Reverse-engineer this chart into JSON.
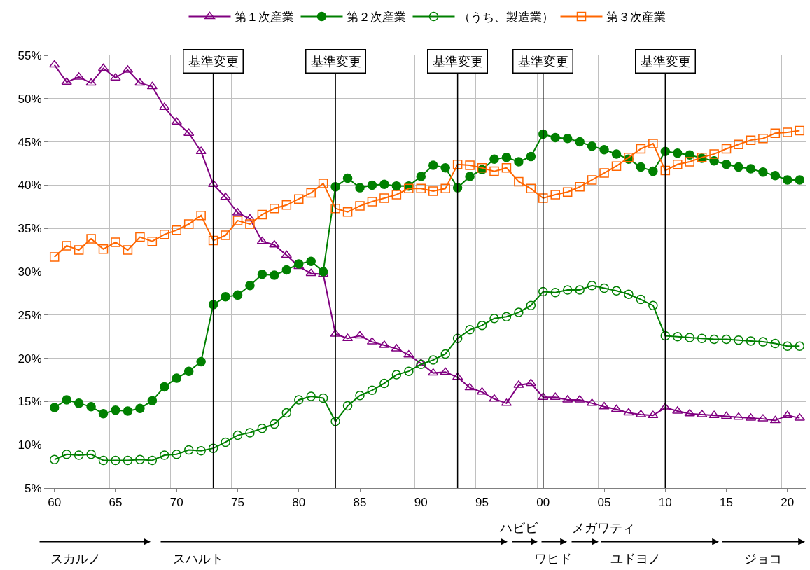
{
  "chart_data": {
    "type": "line",
    "x": [
      1960,
      1961,
      1962,
      1963,
      1964,
      1965,
      1966,
      1967,
      1968,
      1969,
      1970,
      1971,
      1972,
      1973,
      1974,
      1975,
      1976,
      1977,
      1978,
      1979,
      1980,
      1981,
      1982,
      1983,
      1984,
      1985,
      1986,
      1987,
      1988,
      1989,
      1990,
      1991,
      1992,
      1993,
      1994,
      1995,
      1996,
      1997,
      1998,
      1999,
      2000,
      2001,
      2002,
      2003,
      2004,
      2005,
      2006,
      2007,
      2008,
      2009,
      2010,
      2011,
      2012,
      2013,
      2014,
      2015,
      2016,
      2017,
      2018,
      2019,
      2020,
      2021
    ],
    "series": [
      {
        "name": "第１次産業",
        "color": "#800080",
        "marker": "triangle-open",
        "values": [
          53.9,
          51.9,
          52.5,
          51.8,
          53.5,
          52.4,
          53.3,
          51.8,
          51.4,
          49.0,
          47.3,
          46.0,
          43.9,
          40.1,
          38.6,
          36.8,
          36.1,
          33.5,
          33.1,
          31.9,
          30.6,
          29.8,
          29.7,
          22.8,
          22.3,
          22.6,
          21.9,
          21.5,
          21.1,
          20.4,
          19.4,
          18.3,
          18.4,
          17.8,
          16.6,
          16.1,
          15.3,
          14.8,
          16.9,
          17.1,
          15.5,
          15.5,
          15.2,
          15.2,
          14.8,
          14.4,
          14.1,
          13.7,
          13.5,
          13.4,
          14.3,
          13.9,
          13.6,
          13.5,
          13.4,
          13.3,
          13.2,
          13.1,
          13.0,
          12.8,
          13.4,
          13.1
        ]
      },
      {
        "name": "第２次産業",
        "color": "#008000",
        "marker": "circle",
        "values": [
          14.3,
          15.2,
          14.8,
          14.4,
          13.6,
          14.0,
          13.9,
          14.2,
          15.1,
          16.7,
          17.7,
          18.5,
          19.6,
          26.2,
          27.1,
          27.3,
          28.4,
          29.7,
          29.6,
          30.2,
          30.9,
          31.2,
          30.0,
          39.8,
          40.8,
          39.7,
          40.0,
          40.1,
          39.9,
          39.9,
          41.0,
          42.3,
          42.0,
          39.7,
          41.0,
          41.8,
          43.0,
          43.2,
          42.7,
          43.3,
          45.9,
          45.5,
          45.4,
          45.0,
          44.5,
          44.1,
          43.6,
          43.0,
          42.1,
          41.6,
          43.9,
          43.7,
          43.5,
          43.1,
          42.8,
          42.4,
          42.1,
          41.9,
          41.5,
          41.1,
          40.6,
          40.6
        ]
      },
      {
        "name": "（うち、製造業）",
        "color": "#008000",
        "marker": "circle-open",
        "values": [
          8.3,
          8.9,
          8.8,
          8.9,
          8.2,
          8.2,
          8.2,
          8.3,
          8.2,
          8.8,
          8.9,
          9.4,
          9.3,
          9.6,
          10.3,
          11.1,
          11.4,
          11.9,
          12.4,
          13.7,
          15.2,
          15.6,
          15.4,
          12.7,
          14.5,
          15.7,
          16.3,
          17.1,
          18.1,
          18.5,
          19.3,
          19.8,
          20.5,
          22.3,
          23.3,
          23.8,
          24.6,
          24.8,
          25.3,
          26.1,
          27.7,
          27.6,
          27.9,
          27.9,
          28.4,
          28.1,
          27.8,
          27.4,
          26.8,
          26.1,
          22.6,
          22.5,
          22.4,
          22.3,
          22.2,
          22.2,
          22.1,
          22.0,
          21.9,
          21.7,
          21.4,
          21.4
        ]
      },
      {
        "name": "第３次産業",
        "color": "#ff6600",
        "marker": "square-open",
        "values": [
          31.7,
          33.0,
          32.5,
          33.8,
          32.6,
          33.4,
          32.5,
          34.0,
          33.5,
          34.3,
          34.8,
          35.5,
          36.5,
          33.6,
          34.2,
          35.9,
          35.5,
          36.6,
          37.3,
          37.7,
          38.4,
          39.1,
          40.2,
          37.3,
          36.9,
          37.6,
          38.1,
          38.5,
          38.9,
          39.6,
          39.6,
          39.3,
          39.6,
          42.4,
          42.3,
          42.0,
          41.6,
          42.0,
          40.4,
          39.6,
          38.5,
          38.9,
          39.2,
          39.8,
          40.6,
          41.4,
          42.2,
          43.2,
          44.2,
          44.8,
          41.7,
          42.4,
          42.7,
          43.2,
          43.6,
          44.2,
          44.7,
          45.2,
          45.4,
          46.0,
          46.1,
          46.3
        ]
      }
    ],
    "xlim": [
      1959.5,
      2021.5
    ],
    "xticks": [
      {
        "value": 1960,
        "label": "60"
      },
      {
        "value": 1965,
        "label": "65"
      },
      {
        "value": 1970,
        "label": "70"
      },
      {
        "value": 1975,
        "label": "75"
      },
      {
        "value": 1980,
        "label": "80"
      },
      {
        "value": 1985,
        "label": "85"
      },
      {
        "value": 1990,
        "label": "90"
      },
      {
        "value": 1995,
        "label": "95"
      },
      {
        "value": 2000,
        "label": "00"
      },
      {
        "value": 2005,
        "label": "05"
      },
      {
        "value": 2010,
        "label": "10"
      },
      {
        "value": 2015,
        "label": "15"
      },
      {
        "value": 2020,
        "label": "20"
      }
    ],
    "ylim": [
      5,
      55
    ],
    "yticks": [
      {
        "value": 5,
        "label": "5%"
      },
      {
        "value": 10,
        "label": "10%"
      },
      {
        "value": 15,
        "label": "15%"
      },
      {
        "value": 20,
        "label": "20%"
      },
      {
        "value": 25,
        "label": "25%"
      },
      {
        "value": 30,
        "label": "30%"
      },
      {
        "value": 35,
        "label": "35%"
      },
      {
        "value": 40,
        "label": "40%"
      },
      {
        "value": 45,
        "label": "45%"
      },
      {
        "value": 50,
        "label": "50%"
      },
      {
        "value": 55,
        "label": "55%"
      }
    ],
    "ref_lines": [
      {
        "axis": "x",
        "value": 1973,
        "label": "基準変更",
        "color": "#000000"
      },
      {
        "axis": "x",
        "value": 1983,
        "label": "基準変更",
        "color": "#000000"
      },
      {
        "axis": "x",
        "value": 1993,
        "label": "基準変更",
        "color": "#000000"
      },
      {
        "axis": "x",
        "value": 2000,
        "label": "基準変更",
        "color": "#000000"
      },
      {
        "axis": "x",
        "value": 2010,
        "label": "基準変更",
        "color": "#000000"
      }
    ],
    "annotations": [
      "スカルノ",
      "スハルト",
      "ハビビ",
      "ワヒド",
      "メガワティ",
      "ユドヨノ",
      "ジョコ"
    ],
    "grid": true,
    "legend": "top",
    "line_style": "solid"
  }
}
